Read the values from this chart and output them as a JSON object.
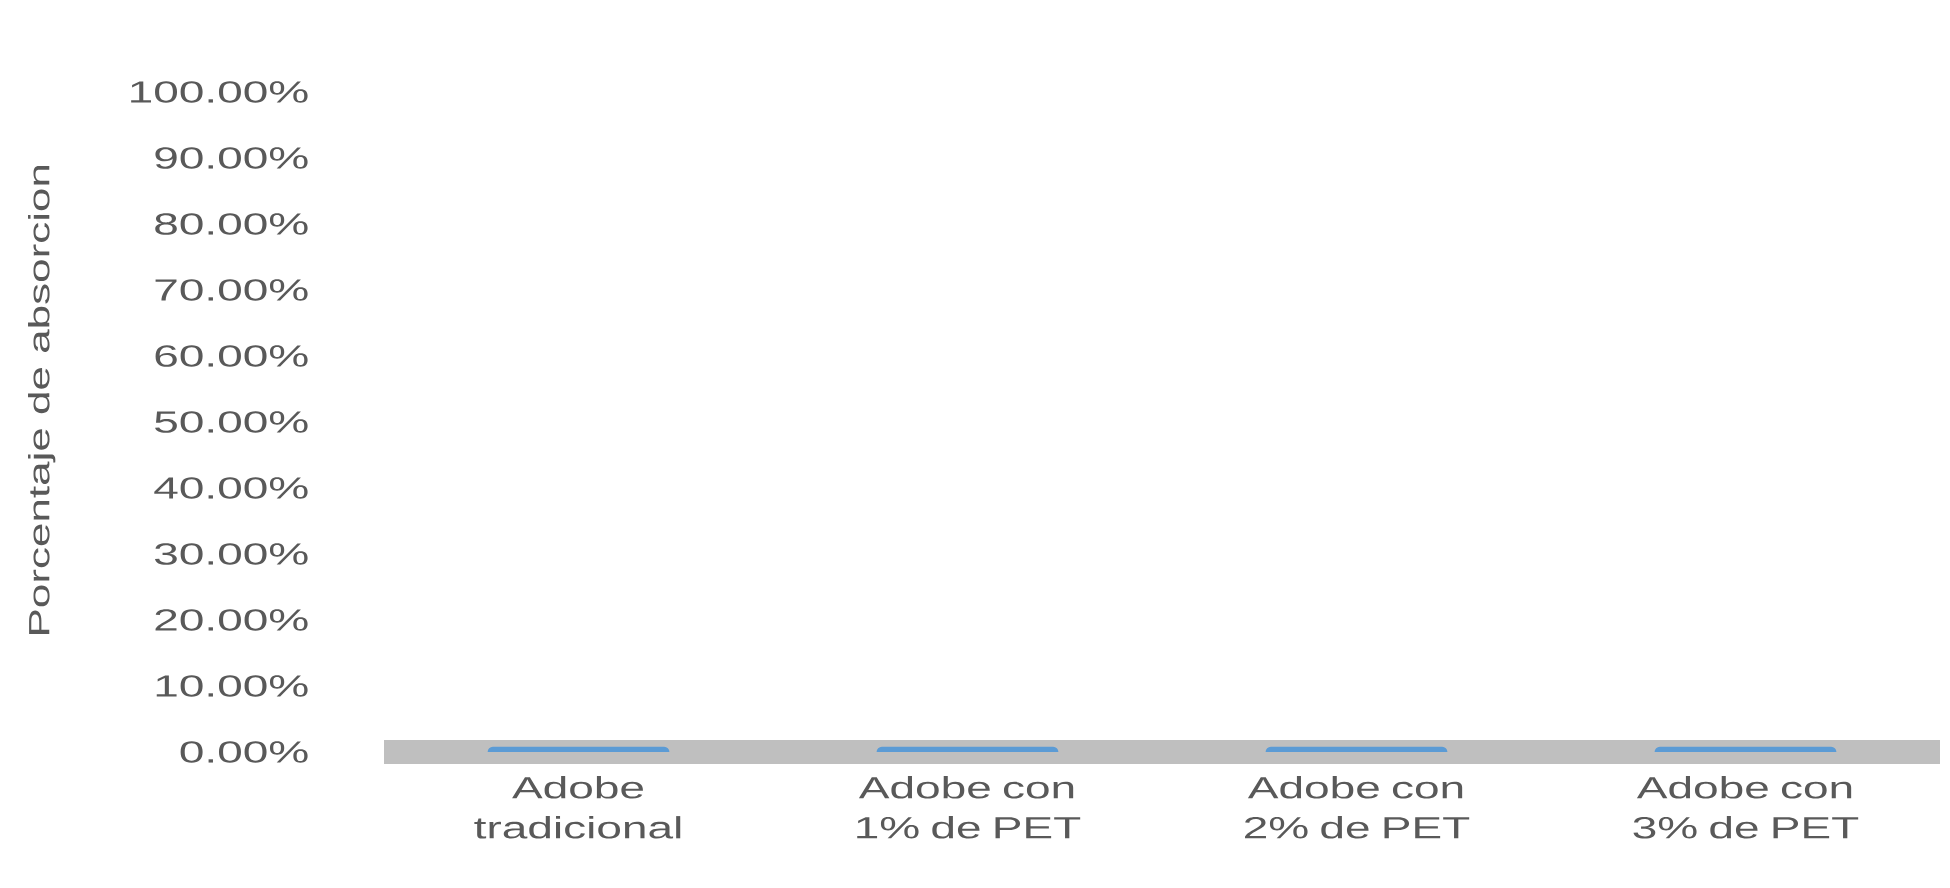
{
  "chart_data": {
    "type": "bar",
    "ylabel": "Porcentaje de absorcion",
    "categories": [
      "Adobe tradicional",
      "Adobe con 1% de PET",
      "Adobe con 2% de PET",
      "Adobe con 3% de PET"
    ],
    "series": [
      {
        "color": "#5b9bd5",
        "values": [
          0,
          0,
          0,
          0
        ]
      }
    ],
    "ylim": [
      0,
      100
    ],
    "yticks": [
      {
        "value": 0,
        "label": "0.00%"
      },
      {
        "value": 10,
        "label": "10.00%"
      },
      {
        "value": 20,
        "label": "20.00%"
      },
      {
        "value": 30,
        "label": "30.00%"
      },
      {
        "value": 40,
        "label": "40.00%"
      },
      {
        "value": 50,
        "label": "50.00%"
      },
      {
        "value": 60,
        "label": "60.00%"
      },
      {
        "value": 70,
        "label": "70.00%"
      },
      {
        "value": 80,
        "label": "80.00%"
      },
      {
        "value": 90,
        "label": "90.00%"
      },
      {
        "value": 100,
        "label": "100.00%"
      }
    ]
  }
}
